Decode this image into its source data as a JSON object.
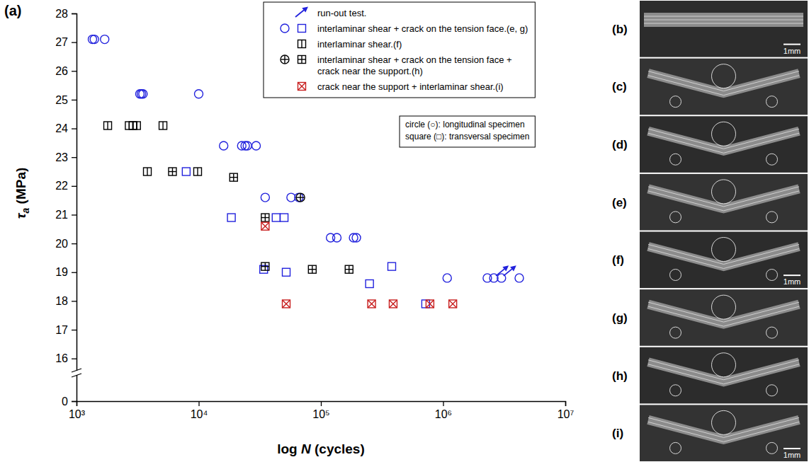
{
  "chart_data": {
    "type": "scatter",
    "panel_label": "(a)",
    "x_label": "log N (cycles)",
    "y_label": "τa (MPa)",
    "log": "x",
    "grid": false,
    "legend": "top-right",
    "xlim": [
      1000,
      10000000
    ],
    "xticks": [
      {
        "value": 1000,
        "label": "10³"
      },
      {
        "value": 10000,
        "label": "10⁴"
      },
      {
        "value": 100000,
        "label": "10⁵"
      },
      {
        "value": 1000000,
        "label": "10⁶"
      },
      {
        "value": 10000000,
        "label": "10⁷"
      }
    ],
    "ylim": [
      0,
      28
    ],
    "yticks": [
      0,
      16,
      17,
      18,
      19,
      20,
      21,
      22,
      23,
      24,
      25,
      26,
      27,
      28
    ],
    "annotations": [
      "circle (○): longitudinal specimen",
      "square (□): transversal specimen"
    ],
    "series": [
      {
        "name": "run-out test.",
        "color": "#2222dd",
        "marker": "arrow",
        "x": [
          2600000,
          3000000
        ],
        "values": [
          18.8,
          18.8
        ]
      },
      {
        "name": "interlaminar shear + crack on the tension face.(e, g)",
        "color": "#2222dd",
        "marker": "circle",
        "x": [
          1350,
          1400,
          1700,
          3300,
          3400,
          3500,
          10000,
          16000,
          22500,
          24000,
          25000,
          29500,
          35000,
          57000,
          66000,
          120000,
          135000,
          185000,
          195000,
          1080000,
          2300000,
          2600000,
          3000000,
          4200000
        ],
        "values": [
          27.1,
          27.1,
          27.1,
          25.2,
          25.2,
          25.2,
          25.2,
          23.4,
          23.4,
          23.4,
          23.4,
          23.4,
          21.6,
          21.6,
          21.6,
          20.2,
          20.2,
          20.2,
          20.2,
          18.8,
          18.8,
          18.8,
          18.8,
          18.8
        ]
      },
      {
        "name": "interlaminar shear + crack on the tension face.(e, g)",
        "color": "#2222dd",
        "marker": "square",
        "x": [
          7900,
          18500,
          43000,
          50000,
          34000,
          52000,
          380000,
          250000,
          720000
        ],
        "values": [
          22.5,
          20.9,
          20.9,
          20.9,
          19.1,
          19.0,
          19.2,
          18.6,
          17.9
        ]
      },
      {
        "name": "interlaminar shear.(f)",
        "color": "#000000",
        "marker": "square-vline",
        "x": [
          1800,
          2700,
          2900,
          3100,
          5100,
          3800,
          9800
        ],
        "values": [
          24.1,
          24.1,
          24.1,
          24.1,
          24.1,
          22.5,
          22.5
        ]
      },
      {
        "name": "interlaminar shear + crack on the tension face + crack near the support.(h)",
        "color": "#000000",
        "marker": "circle-cross",
        "x": [
          68000
        ],
        "values": [
          21.6
        ]
      },
      {
        "name": "interlaminar shear + crack on the tension face + crack near the support.(h)",
        "color": "#000000",
        "marker": "square-cross",
        "x": [
          6100,
          19300,
          35000,
          35000,
          85000,
          170000
        ],
        "values": [
          22.5,
          22.3,
          20.9,
          19.2,
          19.1,
          19.1
        ]
      },
      {
        "name": "crack near the support + interlaminar shear.(i)",
        "color": "#c82020",
        "marker": "square-x",
        "x": [
          35000,
          52000,
          260000,
          390000,
          780000,
          1200000
        ],
        "values": [
          20.6,
          17.9,
          17.9,
          17.9,
          17.9,
          17.9
        ]
      }
    ]
  },
  "photos": [
    {
      "label": "(b)",
      "scale_bar": "1mm"
    },
    {
      "label": "(c)"
    },
    {
      "label": "(d)"
    },
    {
      "label": "(e)"
    },
    {
      "label": "(f)",
      "scale_bar": "1mm"
    },
    {
      "label": "(g)"
    },
    {
      "label": "(h)"
    },
    {
      "label": "(i)",
      "scale_bar": "1mm"
    }
  ]
}
